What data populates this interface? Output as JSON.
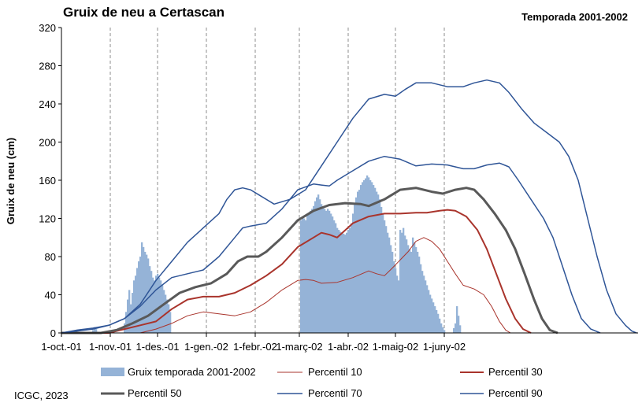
{
  "chart_data": {
    "type": "bar+line",
    "title": "Gruix de neu a Certascan",
    "subtitle": "Temporada 2001-2002",
    "ylabel": "Gruix de neu (cm)",
    "xlabel": "",
    "ylim": [
      0,
      320
    ],
    "yticks": [
      0,
      40,
      80,
      120,
      160,
      200,
      240,
      280,
      320
    ],
    "xlim_days": [
      0,
      300
    ],
    "x_unit": "days from 1-oct.-01",
    "xticks": [
      {
        "label": "1-oct.-01",
        "day": 0
      },
      {
        "label": "1-nov.-01",
        "day": 31
      },
      {
        "label": "1-des.-01",
        "day": 61
      },
      {
        "label": "1-gen.-02",
        "day": 92
      },
      {
        "label": "1-febr.-02",
        "day": 123
      },
      {
        "label": "1-març-02",
        "day": 151
      },
      {
        "label": "1-abr.-02",
        "day": 182
      },
      {
        "label": "1-maig-02",
        "day": 212
      },
      {
        "label": "1-juny-02",
        "day": 243
      }
    ],
    "grid": "vertical dashed",
    "legend_placement": "bottom",
    "bars": {
      "name": "Gruix temporada 2001-2002",
      "color": "#95b3d7",
      "points": [
        [
          20,
          3
        ],
        [
          21,
          6
        ],
        [
          22,
          4
        ],
        [
          40,
          10
        ],
        [
          41,
          22
        ],
        [
          42,
          35
        ],
        [
          43,
          45
        ],
        [
          44,
          30
        ],
        [
          45,
          42
        ],
        [
          46,
          55
        ],
        [
          47,
          60
        ],
        [
          48,
          68
        ],
        [
          49,
          75
        ],
        [
          50,
          80
        ],
        [
          51,
          95
        ],
        [
          52,
          90
        ],
        [
          53,
          85
        ],
        [
          54,
          82
        ],
        [
          55,
          78
        ],
        [
          56,
          70
        ],
        [
          57,
          65
        ],
        [
          58,
          58
        ],
        [
          59,
          55
        ],
        [
          60,
          60
        ],
        [
          61,
          62
        ],
        [
          62,
          58
        ],
        [
          63,
          55
        ],
        [
          64,
          50
        ],
        [
          65,
          45
        ],
        [
          66,
          40
        ],
        [
          67,
          35
        ],
        [
          68,
          30
        ],
        [
          69,
          22
        ],
        [
          152,
          118
        ],
        [
          153,
          122
        ],
        [
          154,
          120
        ],
        [
          155,
          118
        ],
        [
          156,
          123
        ],
        [
          157,
          125
        ],
        [
          158,
          128
        ],
        [
          159,
          130
        ],
        [
          160,
          133
        ],
        [
          161,
          138
        ],
        [
          162,
          142
        ],
        [
          163,
          145
        ],
        [
          164,
          140
        ],
        [
          165,
          135
        ],
        [
          166,
          132
        ],
        [
          167,
          130
        ],
        [
          168,
          128
        ],
        [
          169,
          130
        ],
        [
          170,
          128
        ],
        [
          171,
          125
        ],
        [
          172,
          122
        ],
        [
          173,
          118
        ],
        [
          174,
          115
        ],
        [
          175,
          110
        ],
        [
          176,
          108
        ],
        [
          177,
          106
        ],
        [
          178,
          105
        ],
        [
          179,
          104
        ],
        [
          180,
          103
        ],
        [
          181,
          105
        ],
        [
          182,
          108
        ],
        [
          183,
          110
        ],
        [
          184,
          115
        ],
        [
          185,
          125
        ],
        [
          186,
          135
        ],
        [
          187,
          142
        ],
        [
          188,
          148
        ],
        [
          189,
          150
        ],
        [
          190,
          155
        ],
        [
          191,
          158
        ],
        [
          192,
          160
        ],
        [
          193,
          162
        ],
        [
          194,
          165
        ],
        [
          195,
          163
        ],
        [
          196,
          160
        ],
        [
          197,
          158
        ],
        [
          198,
          155
        ],
        [
          199,
          152
        ],
        [
          200,
          148
        ],
        [
          201,
          145
        ],
        [
          202,
          140
        ],
        [
          203,
          132
        ],
        [
          204,
          125
        ],
        [
          205,
          118
        ],
        [
          206,
          112
        ],
        [
          207,
          105
        ],
        [
          208,
          100
        ],
        [
          209,
          92
        ],
        [
          210,
          85
        ],
        [
          211,
          75
        ],
        [
          212,
          68
        ],
        [
          213,
          60
        ],
        [
          214,
          55
        ],
        [
          215,
          108
        ],
        [
          216,
          105
        ],
        [
          217,
          110
        ],
        [
          218,
          102
        ],
        [
          219,
          98
        ],
        [
          220,
          92
        ],
        [
          221,
          88
        ],
        [
          222,
          85
        ],
        [
          223,
          100
        ],
        [
          224,
          95
        ],
        [
          225,
          90
        ],
        [
          226,
          85
        ],
        [
          227,
          80
        ],
        [
          228,
          72
        ],
        [
          229,
          65
        ],
        [
          230,
          60
        ],
        [
          231,
          55
        ],
        [
          232,
          50
        ],
        [
          233,
          45
        ],
        [
          234,
          40
        ],
        [
          235,
          36
        ],
        [
          236,
          32
        ],
        [
          237,
          28
        ],
        [
          238,
          24
        ],
        [
          239,
          20
        ],
        [
          240,
          15
        ],
        [
          241,
          10
        ],
        [
          242,
          6
        ],
        [
          243,
          3
        ],
        [
          249,
          5
        ],
        [
          250,
          10
        ],
        [
          251,
          28
        ],
        [
          252,
          18
        ],
        [
          253,
          8
        ]
      ]
    },
    "series": [
      {
        "name": "Percentil 10",
        "color": "#a9342c",
        "width": 1,
        "points": [
          [
            0,
            0
          ],
          [
            50,
            0
          ],
          [
            60,
            4
          ],
          [
            70,
            10
          ],
          [
            80,
            18
          ],
          [
            90,
            22
          ],
          [
            100,
            20
          ],
          [
            110,
            18
          ],
          [
            120,
            22
          ],
          [
            130,
            32
          ],
          [
            140,
            45
          ],
          [
            150,
            55
          ],
          [
            155,
            56
          ],
          [
            160,
            55
          ],
          [
            165,
            52
          ],
          [
            175,
            53
          ],
          [
            185,
            58
          ],
          [
            195,
            65
          ],
          [
            200,
            62
          ],
          [
            205,
            60
          ],
          [
            210,
            68
          ],
          [
            220,
            85
          ],
          [
            225,
            96
          ],
          [
            230,
            100
          ],
          [
            235,
            96
          ],
          [
            240,
            88
          ],
          [
            245,
            75
          ],
          [
            250,
            62
          ],
          [
            255,
            50
          ],
          [
            262,
            46
          ],
          [
            268,
            40
          ],
          [
            273,
            28
          ],
          [
            278,
            12
          ],
          [
            282,
            3
          ],
          [
            285,
            0
          ]
        ]
      },
      {
        "name": "Percentil 30",
        "color": "#a9342c",
        "width": 2,
        "points": [
          [
            0,
            0
          ],
          [
            30,
            0
          ],
          [
            40,
            4
          ],
          [
            50,
            8
          ],
          [
            60,
            12
          ],
          [
            70,
            25
          ],
          [
            80,
            35
          ],
          [
            90,
            38
          ],
          [
            100,
            38
          ],
          [
            110,
            42
          ],
          [
            120,
            50
          ],
          [
            130,
            60
          ],
          [
            140,
            72
          ],
          [
            150,
            90
          ],
          [
            160,
            100
          ],
          [
            165,
            105
          ],
          [
            170,
            103
          ],
          [
            175,
            100
          ],
          [
            185,
            115
          ],
          [
            195,
            122
          ],
          [
            205,
            125
          ],
          [
            215,
            125
          ],
          [
            225,
            126
          ],
          [
            232,
            126
          ],
          [
            240,
            128
          ],
          [
            245,
            129
          ],
          [
            250,
            128
          ],
          [
            257,
            122
          ],
          [
            264,
            108
          ],
          [
            270,
            88
          ],
          [
            276,
            62
          ],
          [
            282,
            36
          ],
          [
            288,
            15
          ],
          [
            293,
            4
          ],
          [
            298,
            0
          ]
        ]
      },
      {
        "name": "Percentil 50",
        "color": "#595959",
        "width": 3,
        "points": [
          [
            0,
            0
          ],
          [
            25,
            0
          ],
          [
            35,
            3
          ],
          [
            45,
            10
          ],
          [
            55,
            18
          ],
          [
            65,
            30
          ],
          [
            75,
            42
          ],
          [
            85,
            48
          ],
          [
            95,
            52
          ],
          [
            105,
            62
          ],
          [
            112,
            75
          ],
          [
            118,
            80
          ],
          [
            125,
            80
          ],
          [
            130,
            85
          ],
          [
            140,
            100
          ],
          [
            150,
            118
          ],
          [
            160,
            128
          ],
          [
            170,
            134
          ],
          [
            180,
            136
          ],
          [
            190,
            135
          ],
          [
            195,
            133
          ],
          [
            205,
            140
          ],
          [
            215,
            150
          ],
          [
            225,
            152
          ],
          [
            235,
            148
          ],
          [
            242,
            146
          ],
          [
            250,
            150
          ],
          [
            257,
            152
          ],
          [
            262,
            150
          ],
          [
            268,
            140
          ],
          [
            275,
            125
          ],
          [
            282,
            108
          ],
          [
            288,
            88
          ],
          [
            294,
            62
          ],
          [
            300,
            35
          ],
          [
            305,
            15
          ],
          [
            310,
            3
          ],
          [
            315,
            0
          ]
        ]
      },
      {
        "name": "Percentil 70",
        "color": "#2f5597",
        "width": 1.5,
        "points": [
          [
            0,
            0
          ],
          [
            10,
            2
          ],
          [
            20,
            4
          ],
          [
            30,
            8
          ],
          [
            40,
            15
          ],
          [
            50,
            28
          ],
          [
            60,
            45
          ],
          [
            70,
            58
          ],
          [
            80,
            62
          ],
          [
            90,
            66
          ],
          [
            100,
            80
          ],
          [
            110,
            100
          ],
          [
            115,
            110
          ],
          [
            120,
            112
          ],
          [
            130,
            115
          ],
          [
            140,
            130
          ],
          [
            150,
            150
          ],
          [
            160,
            156
          ],
          [
            165,
            155
          ],
          [
            170,
            154
          ],
          [
            175,
            160
          ],
          [
            185,
            170
          ],
          [
            195,
            180
          ],
          [
            205,
            185
          ],
          [
            215,
            182
          ],
          [
            225,
            175
          ],
          [
            235,
            177
          ],
          [
            245,
            176
          ],
          [
            255,
            172
          ],
          [
            262,
            172
          ],
          [
            270,
            176
          ],
          [
            278,
            178
          ],
          [
            284,
            174
          ],
          [
            290,
            160
          ],
          [
            298,
            140
          ],
          [
            306,
            120
          ],
          [
            312,
            100
          ],
          [
            318,
            70
          ],
          [
            324,
            40
          ],
          [
            330,
            15
          ],
          [
            336,
            4
          ],
          [
            342,
            0
          ]
        ]
      },
      {
        "name": "Percentil 90",
        "color": "#2f5597",
        "width": 1.5,
        "points": [
          [
            0,
            0
          ],
          [
            10,
            3
          ],
          [
            20,
            5
          ],
          [
            30,
            8
          ],
          [
            40,
            15
          ],
          [
            50,
            30
          ],
          [
            60,
            55
          ],
          [
            70,
            75
          ],
          [
            80,
            95
          ],
          [
            90,
            110
          ],
          [
            100,
            125
          ],
          [
            105,
            140
          ],
          [
            110,
            150
          ],
          [
            115,
            152
          ],
          [
            120,
            150
          ],
          [
            125,
            145
          ],
          [
            135,
            135
          ],
          [
            145,
            140
          ],
          [
            155,
            150
          ],
          [
            165,
            175
          ],
          [
            175,
            200
          ],
          [
            185,
            225
          ],
          [
            195,
            245
          ],
          [
            205,
            250
          ],
          [
            212,
            248
          ],
          [
            218,
            255
          ],
          [
            225,
            262
          ],
          [
            235,
            262
          ],
          [
            245,
            258
          ],
          [
            255,
            258
          ],
          [
            262,
            262
          ],
          [
            270,
            265
          ],
          [
            278,
            262
          ],
          [
            284,
            252
          ],
          [
            292,
            235
          ],
          [
            300,
            220
          ],
          [
            308,
            210
          ],
          [
            316,
            200
          ],
          [
            322,
            185
          ],
          [
            328,
            160
          ],
          [
            334,
            120
          ],
          [
            340,
            80
          ],
          [
            346,
            45
          ],
          [
            352,
            20
          ],
          [
            358,
            8
          ],
          [
            362,
            2
          ],
          [
            365,
            0
          ]
        ]
      }
    ],
    "credit": "ICGC, 2023"
  }
}
